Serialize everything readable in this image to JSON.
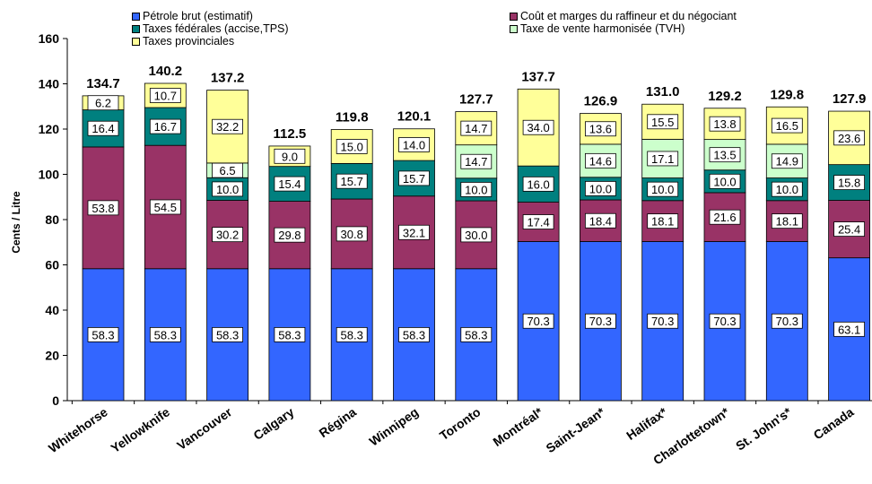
{
  "chart_data": {
    "type": "bar",
    "stacked": true,
    "title": "",
    "xlabel": "",
    "ylabel": "Cents / Litre",
    "ylim": [
      0,
      160
    ],
    "yticks": [
      0,
      20,
      40,
      60,
      80,
      100,
      120,
      140,
      160
    ],
    "grid": false,
    "legend_position": "top",
    "categories": [
      "Whitehorse",
      "Yellowknife",
      "Vancouver",
      "Calgary",
      "Régina",
      "Winnipeg",
      "Toronto",
      "Montréal*",
      "Saint-Jean*",
      "Halifax*",
      "Charlottetown*",
      "St. John's*",
      "Canada"
    ],
    "totals": [
      "134.7",
      "140.2",
      "137.2",
      "112.5",
      "119.8",
      "120.1",
      "127.7",
      "137.7",
      "126.9",
      "131.0",
      "129.2",
      "129.8",
      "127.9"
    ],
    "series": [
      {
        "name": "Pétrole brut (estimatif)",
        "color": "#3366ff",
        "values": [
          58.3,
          58.3,
          58.3,
          58.3,
          58.3,
          58.3,
          58.3,
          70.3,
          70.3,
          70.3,
          70.3,
          70.3,
          63.1
        ],
        "labels": [
          "58.3",
          "58.3",
          "58.3",
          "58.3",
          "58.3",
          "58.3",
          "58.3",
          "70.3",
          "70.3",
          "70.3",
          "70.3",
          "70.3",
          "63.1"
        ]
      },
      {
        "name": "Coût et marges du raffineur et du négociant",
        "color": "#993366",
        "values": [
          53.8,
          54.5,
          30.2,
          29.8,
          30.8,
          32.1,
          30.0,
          17.4,
          18.4,
          18.1,
          21.6,
          18.1,
          25.4
        ],
        "labels": [
          "53.8",
          "54.5",
          "30.2",
          "29.8",
          "30.8",
          "32.1",
          "30.0",
          "17.4",
          "18.4",
          "18.1",
          "21.6",
          "18.1",
          "25.4"
        ]
      },
      {
        "name": "Taxes fédérales (accise,TPS)",
        "color": "#00807f",
        "values": [
          16.4,
          16.7,
          10.0,
          15.4,
          15.7,
          15.7,
          10.0,
          16.0,
          10.0,
          10.0,
          10.0,
          10.0,
          15.8
        ],
        "labels": [
          "16.4",
          "16.7",
          "10.0",
          "15.4",
          "15.7",
          "15.7",
          "10.0",
          "16.0",
          "10.0",
          "10.0",
          "10.0",
          "10.0",
          "15.8"
        ]
      },
      {
        "name": "Taxe de vente harmonisée (TVH)",
        "color": "#ccffcc",
        "values": [
          0,
          0,
          6.5,
          0,
          0,
          0,
          14.7,
          0,
          14.6,
          17.1,
          13.5,
          14.9,
          0
        ],
        "labels": [
          "",
          "",
          "6.5",
          "",
          "",
          "",
          "14.7",
          "",
          "14.6",
          "17.1",
          "13.5",
          "14.9",
          ""
        ]
      },
      {
        "name": "Taxes provinciales",
        "color": "#ffff99",
        "values": [
          6.2,
          10.7,
          32.2,
          9.0,
          15.0,
          14.0,
          14.7,
          34.0,
          13.6,
          15.5,
          13.8,
          16.5,
          23.6
        ],
        "labels": [
          "6.2",
          "10.7",
          "32.2",
          "9.0",
          "15.0",
          "14.0",
          "14.7",
          "34.0",
          "13.6",
          "15.5",
          "13.8",
          "16.5",
          "23.6"
        ]
      }
    ]
  }
}
